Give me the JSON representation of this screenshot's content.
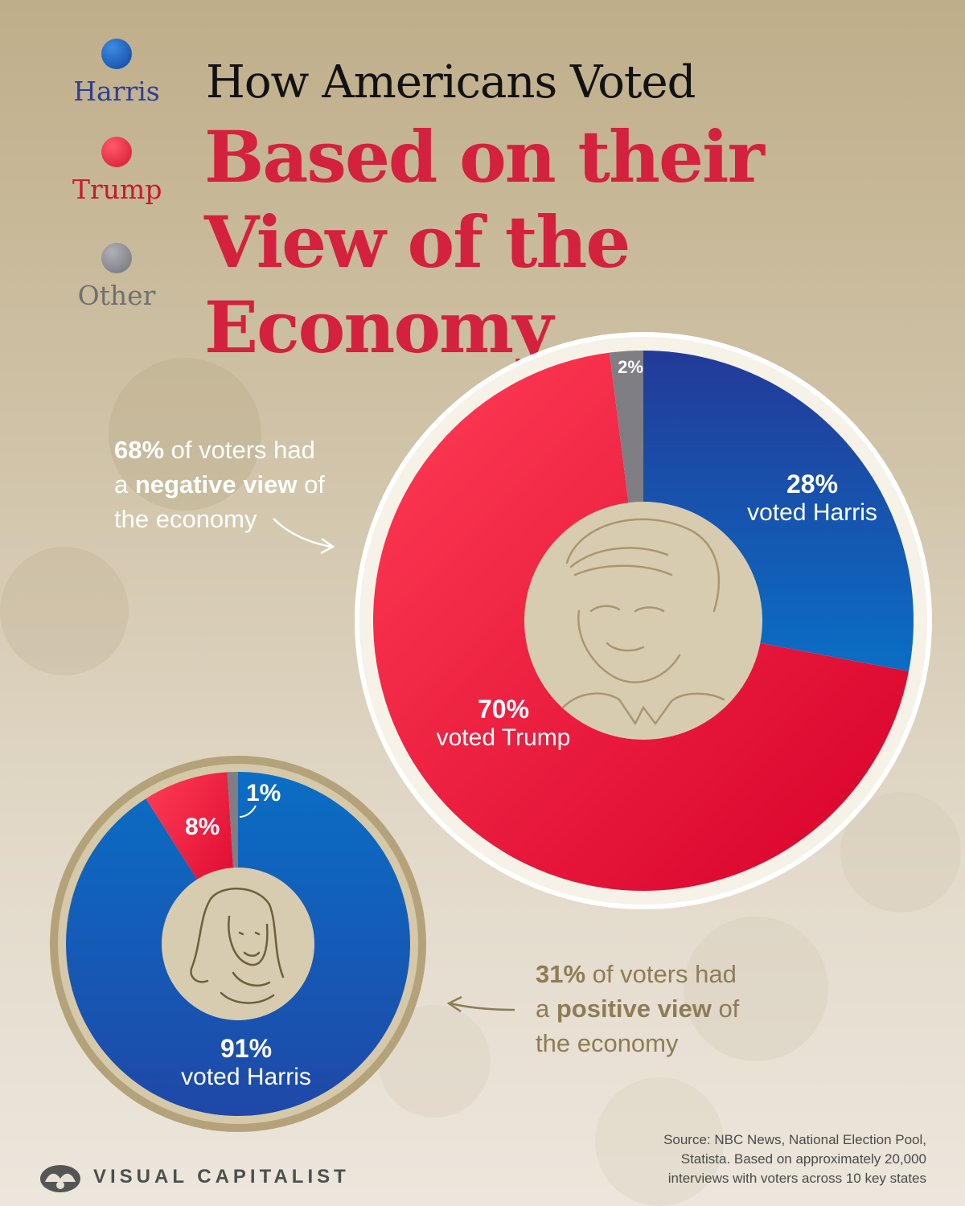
{
  "title": {
    "line1": "How Americans Voted",
    "line2": "Based on their View of the Economy"
  },
  "legend": [
    {
      "label": "Harris",
      "color": "#1c56b2",
      "text_color": "#2d3f95"
    },
    {
      "label": "Trump",
      "color": "#e8283f",
      "text_color": "#c9192f"
    },
    {
      "label": "Other",
      "color": "#8a8a90",
      "text_color": "#707070"
    }
  ],
  "chart_data": [
    {
      "type": "pie",
      "title": "Negative view of the economy",
      "share_of_voters": "68%",
      "annotation": {
        "pct": "68%",
        "t1": " of voters had",
        "t2": "a ",
        "bold": "negative view",
        "t3": " of",
        "t4": "the economy"
      },
      "slices": [
        {
          "name": "Harris",
          "value": 28,
          "color": "#1c56b2",
          "label": "28%",
          "sublabel": "voted Harris"
        },
        {
          "name": "Trump",
          "value": 70,
          "color": "#e8283f",
          "label": "70%",
          "sublabel": "voted Trump"
        },
        {
          "name": "Other",
          "value": 2,
          "color": "#7e7e84",
          "label": "2%",
          "sublabel": ""
        }
      ]
    },
    {
      "type": "pie",
      "title": "Positive view of the economy",
      "share_of_voters": "31%",
      "annotation": {
        "pct": "31%",
        "t1": " of voters had",
        "t2": "a ",
        "bold": "positive view",
        "t3": " of",
        "t4": "the economy"
      },
      "slices": [
        {
          "name": "Harris",
          "value": 91,
          "color": "#1c56b2",
          "label": "91%",
          "sublabel": "voted Harris"
        },
        {
          "name": "Trump",
          "value": 8,
          "color": "#e8283f",
          "label": "8%",
          "sublabel": ""
        },
        {
          "name": "Other",
          "value": 1,
          "color": "#7e7e84",
          "label": "1%",
          "sublabel": ""
        }
      ]
    }
  ],
  "source": {
    "line1": "Source: NBC News, National Election Pool,",
    "line2": "Statista. Based on approximately 20,000",
    "line3": "interviews with voters across 10 key states"
  },
  "brand": "VISUAL CAPITALIST"
}
